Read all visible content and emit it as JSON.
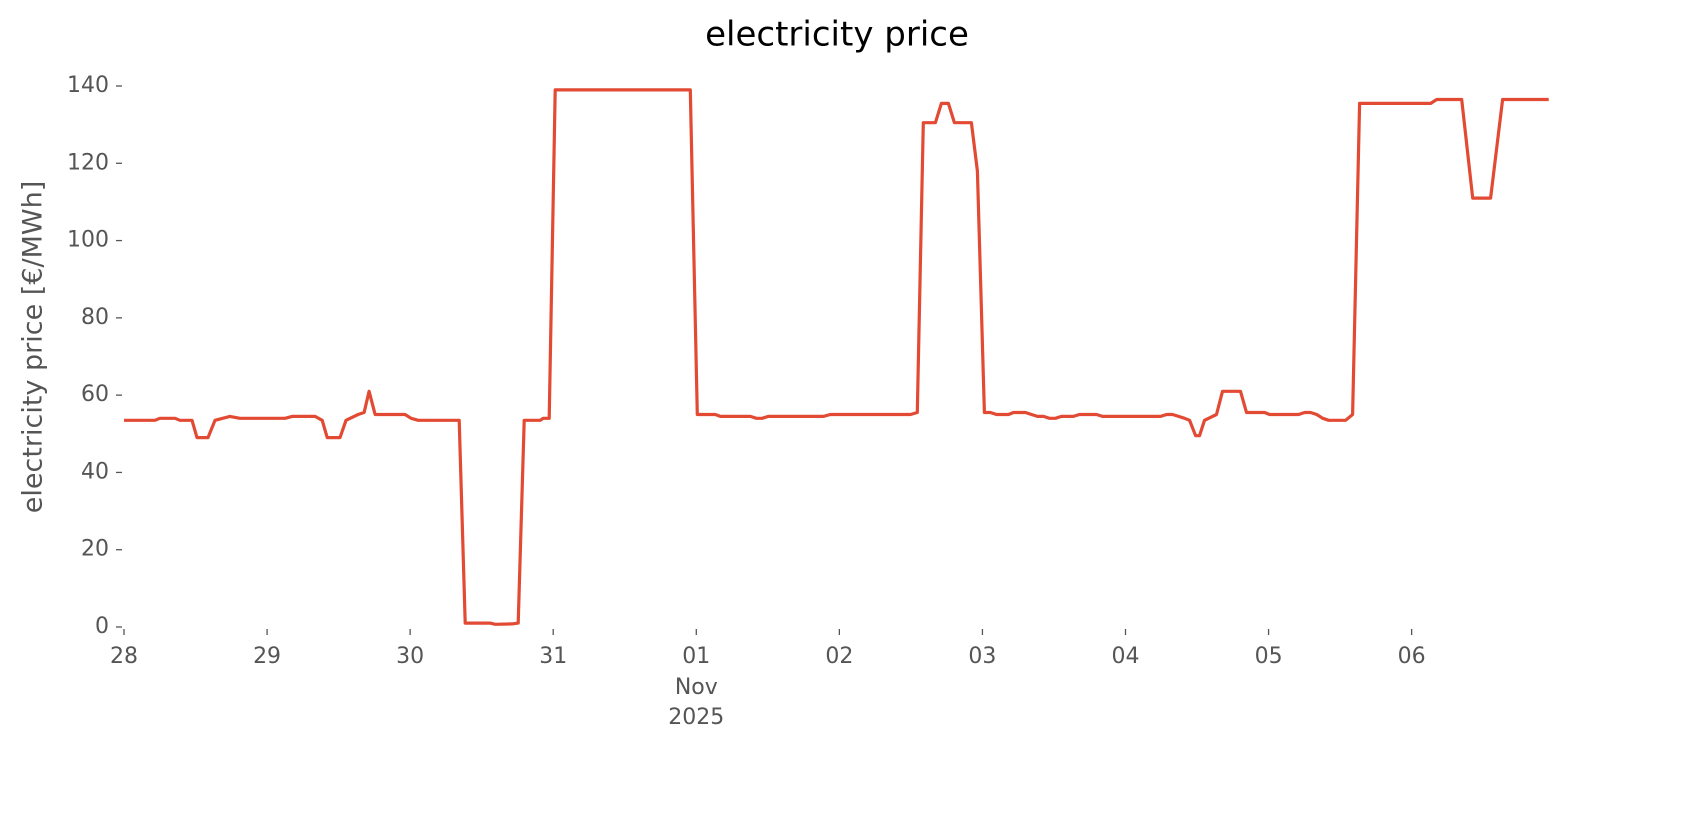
{
  "chart_data": {
    "type": "line",
    "title": "electricity price",
    "y_label": "electricity price [€/MWh]",
    "x_secondary_label": [
      "Nov",
      "2025"
    ],
    "color": "#e24a33",
    "grid": false,
    "xlim": [
      0,
      9.96
    ],
    "ylim": [
      0,
      145
    ],
    "yticks": [
      0,
      20,
      40,
      60,
      80,
      100,
      120,
      140
    ],
    "xticks": [
      {
        "value": 0,
        "label": "28"
      },
      {
        "value": 1,
        "label": "29"
      },
      {
        "value": 2,
        "label": "30"
      },
      {
        "value": 3,
        "label": "31"
      },
      {
        "value": 4,
        "label": "01"
      },
      {
        "value": 5,
        "label": "02"
      },
      {
        "value": 6,
        "label": "03"
      },
      {
        "value": 7,
        "label": "04"
      },
      {
        "value": 8,
        "label": "05"
      },
      {
        "value": 9,
        "label": "06"
      }
    ],
    "x": [
      0,
      0.217,
      0.25,
      0.357,
      0.39,
      0.475,
      0.51,
      0.587,
      0.636,
      0.74,
      0.81,
      1.126,
      1.175,
      1.336,
      1.385,
      1.42,
      1.51,
      1.552,
      1.636,
      1.678,
      1.713,
      1.755,
      1.965,
      2.007,
      2.056,
      2.343,
      2.385,
      2.559,
      2.594,
      2.713,
      2.755,
      2.797,
      2.909,
      2.93,
      2.972,
      3.014,
      3.958,
      4.007,
      4.133,
      4.168,
      4.378,
      4.42,
      4.46,
      4.503,
      4.888,
      4.937,
      5.497,
      5.545,
      5.587,
      5.671,
      5.713,
      5.762,
      5.804,
      5.923,
      5.965,
      6.014,
      6.056,
      6.098,
      6.182,
      6.217,
      6.3,
      6.343,
      6.385,
      6.427,
      6.469,
      6.51,
      6.552,
      6.636,
      6.678,
      6.797,
      6.839,
      7.245,
      7.287,
      7.329,
      7.371,
      7.413,
      7.448,
      7.49,
      7.517,
      7.552,
      7.636,
      7.678,
      7.804,
      7.846,
      7.972,
      8.007,
      8.21,
      8.252,
      8.294,
      8.336,
      8.378,
      8.42,
      8.538,
      8.587,
      8.636,
      9.133,
      9.175,
      9.35,
      9.427,
      9.552,
      9.636,
      9.958
    ],
    "values": [
      53.5,
      53.5,
      54,
      54,
      53.5,
      53.5,
      49,
      49,
      53.5,
      54.5,
      54,
      54,
      54.5,
      54.5,
      53.5,
      49,
      49,
      53.5,
      55,
      55.5,
      61,
      55,
      55,
      54,
      53.5,
      53.5,
      1,
      1,
      0.7,
      0.8,
      1,
      53.5,
      53.5,
      54,
      54,
      139,
      139,
      55,
      55,
      54.5,
      54.5,
      54,
      54,
      54.5,
      54.5,
      55,
      55,
      55.5,
      130.5,
      130.5,
      135.5,
      135.5,
      130.5,
      130.5,
      118,
      55.5,
      55.5,
      55,
      55,
      55.5,
      55.5,
      55,
      54.5,
      54.5,
      54,
      54,
      54.5,
      54.5,
      55,
      55,
      54.5,
      54.5,
      55,
      55,
      54.5,
      54,
      53.5,
      49.5,
      49.5,
      53.5,
      55,
      61,
      61,
      55.5,
      55.5,
      55,
      55,
      55.5,
      55.5,
      55,
      54,
      53.5,
      53.5,
      55,
      135.5,
      135.5,
      136.5,
      136.5,
      111,
      111,
      136.5,
      136.5
    ]
  }
}
